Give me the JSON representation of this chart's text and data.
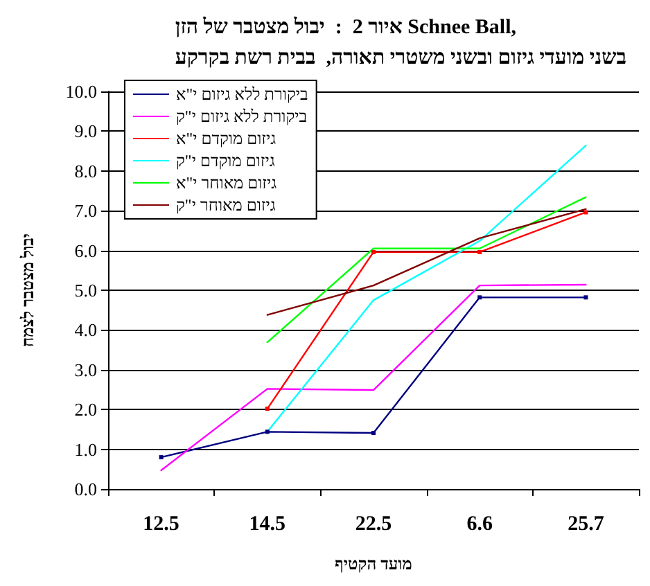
{
  "chart_data": {
    "type": "line",
    "title": "איור 2  :  יבול מצטבר של הזן Schnee Ball,\nבשני מועדי גיזום ובשני משטרי תאורה,  בבית רשת בקרקע",
    "xlabel": "מועד הקטיף",
    "ylabel": "יבול מצטבר לצמח",
    "categories": [
      "12.5",
      "14.5",
      "22.5",
      "6.6",
      "25.7"
    ],
    "series": [
      {
        "name": "ביקורת ללא גיזום י\"א",
        "color": "#000080",
        "marker": "square",
        "values": [
          0.8,
          1.44,
          1.41,
          4.82,
          4.82
        ]
      },
      {
        "name": "ביקורת ללא גיזום י\"ק",
        "color": "#ff00ff",
        "values": [
          0.47,
          2.52,
          2.49,
          5.12,
          5.14
        ]
      },
      {
        "name": "גיזום מוקדם י\"א",
        "color": "#ff0000",
        "marker": "square",
        "values": [
          null,
          2.02,
          5.96,
          5.96,
          6.96
        ]
      },
      {
        "name": "גיזום מוקדם י\"ק",
        "color": "#00ffff",
        "values": [
          null,
          1.44,
          4.75,
          6.24,
          8.64
        ]
      },
      {
        "name": "גיזום מאוחר י\"א",
        "color": "#00ff00",
        "values": [
          null,
          3.69,
          6.05,
          6.05,
          7.34
        ]
      },
      {
        "name": "גיזום מאוחר י\"ק",
        "color": "#800000",
        "values": [
          null,
          4.38,
          5.12,
          6.31,
          7.04
        ]
      }
    ],
    "ylim": [
      0,
      10
    ],
    "yticks": [
      {
        "value": 0,
        "label": "0.0"
      },
      {
        "value": 1,
        "label": "1.0"
      },
      {
        "value": 2,
        "label": "2.0"
      },
      {
        "value": 3,
        "label": "3.0"
      },
      {
        "value": 4,
        "label": "4.0"
      },
      {
        "value": 5,
        "label": "5.0"
      },
      {
        "value": 6,
        "label": "6.0"
      },
      {
        "value": 7,
        "label": "7.0"
      },
      {
        "value": 8,
        "label": "8.0"
      },
      {
        "value": 9,
        "label": "9.0"
      },
      {
        "value": 10,
        "label": "10.0"
      }
    ],
    "grid": "y",
    "legend": "top left",
    "marker": "none",
    "line_style": "solid"
  }
}
